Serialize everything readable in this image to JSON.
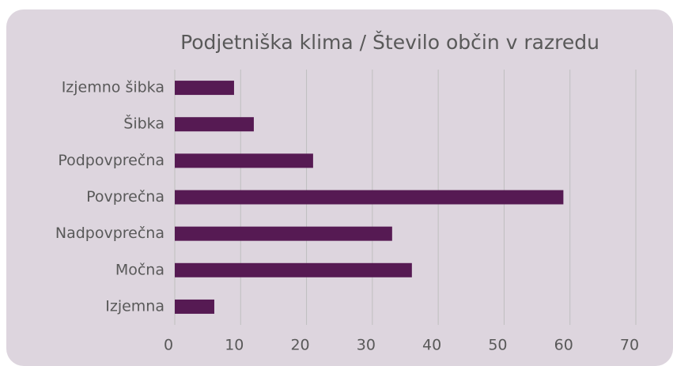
{
  "chart_data": {
    "type": "bar",
    "orientation": "horizontal",
    "title": "Podjetniška klima / Število občin v razredu",
    "categories": [
      "Izjemno šibka",
      "Šibka",
      "Podpovprečna",
      "Povprečna",
      "Nadpovprečna",
      "Močna",
      "Izjemna"
    ],
    "values": [
      9,
      12,
      21,
      59,
      33,
      36,
      6
    ],
    "color": "#561a53",
    "xlim": [
      0,
      70
    ],
    "xticks": [
      0,
      10,
      20,
      30,
      40,
      50,
      60,
      70
    ],
    "grid": true
  }
}
